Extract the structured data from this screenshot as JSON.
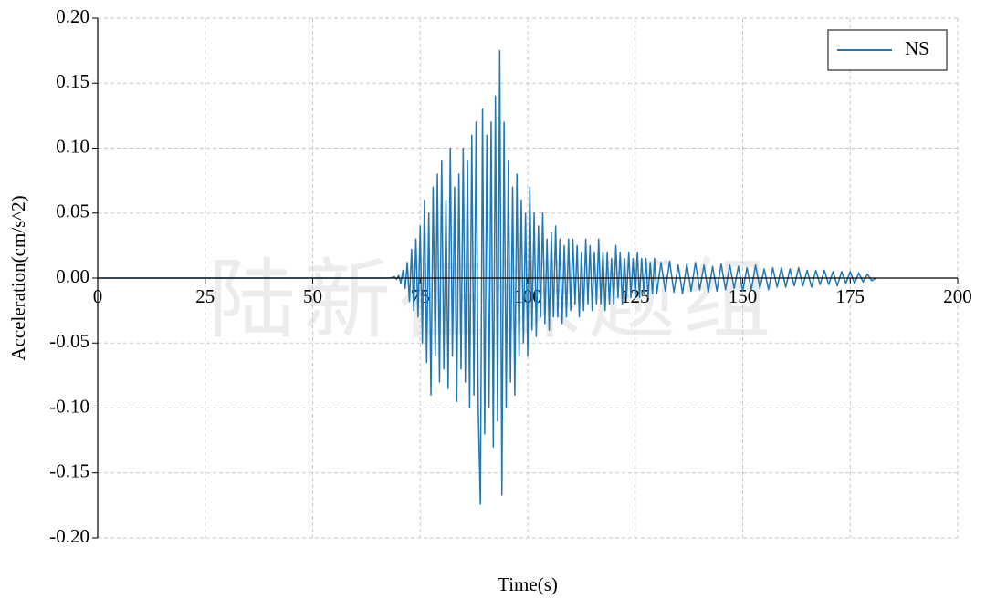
{
  "chart_data": {
    "type": "line",
    "xlabel": "Time(s)",
    "ylabel": "Acceleration(cm/s^2)",
    "watermark": "陆新征课题组",
    "x": [
      0,
      68,
      69,
      69.5,
      70,
      70.5,
      71,
      71.5,
      72,
      72.5,
      73,
      73.5,
      74,
      74.5,
      75,
      75.5,
      76,
      76.5,
      77,
      77.5,
      78,
      78.5,
      79,
      79.5,
      80,
      80.5,
      81,
      81.5,
      82,
      82.5,
      83,
      83.5,
      84,
      84.5,
      85,
      85.5,
      86,
      86.5,
      87,
      87.5,
      88,
      88.5,
      89,
      89.5,
      90,
      90.5,
      91,
      91.5,
      92,
      92.5,
      93,
      93.5,
      94,
      94.5,
      95,
      95.5,
      96,
      96.5,
      97,
      97.5,
      98,
      98.5,
      99,
      99.5,
      100,
      100.5,
      101,
      101.5,
      102,
      102.5,
      103,
      103.5,
      104,
      104.5,
      105,
      105.5,
      106,
      106.5,
      107,
      107.5,
      108,
      108.5,
      109,
      109.5,
      110,
      110.5,
      111,
      111.5,
      112,
      112.5,
      113,
      113.5,
      114,
      114.5,
      115,
      115.5,
      116,
      116.5,
      117,
      117.5,
      118,
      118.5,
      119,
      119.5,
      120,
      120.5,
      121,
      121.5,
      122,
      122.5,
      123,
      123.5,
      124,
      124.5,
      125,
      125.5,
      126,
      126.5,
      127,
      127.5,
      128,
      128.5,
      129,
      129.5,
      130,
      131,
      132,
      133,
      134,
      135,
      136,
      137,
      138,
      139,
      140,
      141,
      142,
      143,
      144,
      145,
      146,
      147,
      148,
      149,
      150,
      151,
      152,
      153,
      154,
      155,
      156,
      157,
      158,
      159,
      160,
      161,
      162,
      163,
      164,
      165,
      166,
      167,
      168,
      169,
      170,
      171,
      172,
      173,
      174,
      175,
      176,
      177,
      178,
      179,
      180,
      181
    ],
    "series": [
      {
        "name": "NS",
        "color": "#1f77b4",
        "values": [
          0,
          0,
          0.001,
          -0.001,
          0.002,
          -0.004,
          0.006,
          -0.008,
          0.012,
          -0.018,
          0.022,
          -0.025,
          0.03,
          -0.03,
          0.04,
          -0.05,
          0.06,
          -0.065,
          0.05,
          -0.09,
          0.07,
          -0.06,
          0.08,
          -0.08,
          0.09,
          -0.07,
          0.06,
          -0.085,
          0.1,
          -0.06,
          0.07,
          -0.095,
          0.08,
          -0.07,
          0.1,
          -0.08,
          0.09,
          -0.1,
          0.11,
          -0.09,
          0.12,
          -0.1,
          -0.174,
          0.13,
          -0.12,
          0.11,
          -0.1,
          0.12,
          -0.13,
          0.14,
          -0.11,
          0.175,
          -0.167,
          0.12,
          -0.1,
          0.09,
          -0.08,
          0.07,
          -0.09,
          0.08,
          -0.06,
          0.06,
          -0.05,
          0.05,
          -0.06,
          0.07,
          -0.04,
          0.05,
          -0.045,
          0.04,
          -0.03,
          0.05,
          -0.035,
          0.03,
          -0.04,
          0.035,
          -0.03,
          0.04,
          -0.03,
          0.03,
          -0.035,
          0.025,
          -0.03,
          0.03,
          -0.025,
          0.03,
          -0.02,
          0.025,
          -0.03,
          0.02,
          -0.025,
          0.03,
          -0.02,
          0.025,
          -0.025,
          0.02,
          -0.02,
          0.03,
          -0.02,
          0.02,
          -0.025,
          0.02,
          -0.02,
          0.015,
          -0.02,
          0.025,
          -0.015,
          0.02,
          -0.02,
          0.015,
          -0.015,
          0.02,
          -0.015,
          0.015,
          -0.015,
          0.02,
          -0.015,
          0.015,
          -0.012,
          0.015,
          -0.015,
          0.012,
          -0.012,
          0.015,
          -0.012,
          0.012,
          -0.01,
          0.013,
          -0.011,
          0.01,
          -0.012,
          0.011,
          -0.01,
          0.012,
          -0.009,
          0.01,
          -0.011,
          0.009,
          -0.01,
          0.011,
          -0.009,
          0.01,
          -0.008,
          0.009,
          -0.01,
          0.008,
          -0.009,
          0.01,
          -0.008,
          0.007,
          -0.009,
          0.008,
          -0.007,
          0.008,
          -0.007,
          0.007,
          -0.006,
          0.008,
          -0.006,
          0.006,
          -0.007,
          0.006,
          -0.005,
          0.006,
          -0.005,
          0.005,
          -0.006,
          0.005,
          -0.004,
          0.005,
          -0.004,
          0.004,
          -0.003,
          0.003,
          -0.002,
          0
        ]
      }
    ],
    "xlim": [
      0,
      200
    ],
    "ylim": [
      -0.2,
      0.2
    ],
    "xticks": [
      0,
      25,
      50,
      75,
      100,
      125,
      150,
      175,
      200
    ],
    "yticks": [
      {
        "value": -0.2,
        "label": "-0.20"
      },
      {
        "value": -0.15,
        "label": "-0.15"
      },
      {
        "value": -0.1,
        "label": "-0.10"
      },
      {
        "value": -0.05,
        "label": "-0.05"
      },
      {
        "value": 0,
        "label": "0.00"
      },
      {
        "value": 0.05,
        "label": "0.05"
      },
      {
        "value": 0.1,
        "label": "0.10"
      },
      {
        "value": 0.15,
        "label": "0.15"
      },
      {
        "value": 0.2,
        "label": "0.20"
      }
    ],
    "grid": true,
    "legend": "upper right"
  }
}
